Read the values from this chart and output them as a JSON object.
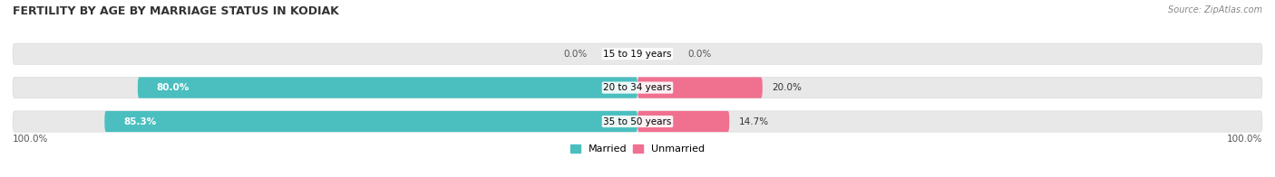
{
  "title": "FERTILITY BY AGE BY MARRIAGE STATUS IN KODIAK",
  "source": "Source: ZipAtlas.com",
  "categories": [
    "15 to 19 years",
    "20 to 34 years",
    "35 to 50 years"
  ],
  "married": [
    0.0,
    80.0,
    85.3
  ],
  "unmarried": [
    0.0,
    20.0,
    14.7
  ],
  "married_color": "#4BBFBF",
  "unmarried_color": "#F07090",
  "bar_bg_color": "#E8E8E8",
  "married_label": "Married",
  "unmarried_label": "Unmarried",
  "axis_label_left": "100.0%",
  "axis_label_right": "100.0%",
  "bar_height": 0.62,
  "figsize": [
    14.06,
    1.96
  ],
  "dpi": 100
}
